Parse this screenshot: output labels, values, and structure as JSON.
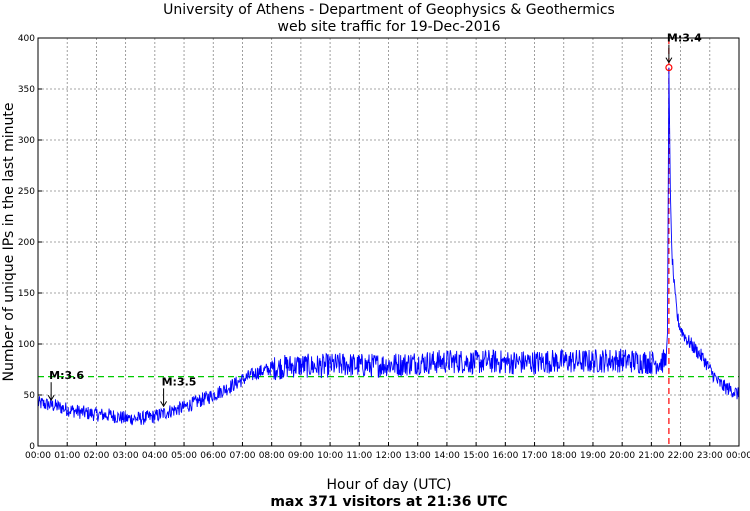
{
  "chart_data": {
    "type": "line",
    "title": "University of Athens - Department of Geophysics & Geothermics",
    "subtitle": "web site traffic for 19-Dec-2016",
    "xlabel": "Hour of day (UTC)",
    "ylabel": "Number of unique IPs in the last minute",
    "footer": "max 371 visitors at 21:36 UTC",
    "xlim": [
      0,
      24
    ],
    "ylim": [
      0,
      400
    ],
    "grid": true,
    "x_ticks": [
      "00:00",
      "01:00",
      "02:00",
      "03:00",
      "04:00",
      "05:00",
      "06:00",
      "07:00",
      "08:00",
      "09:00",
      "10:00",
      "11:00",
      "12:00",
      "13:00",
      "14:00",
      "15:00",
      "16:00",
      "17:00",
      "18:00",
      "19:00",
      "20:00",
      "21:00",
      "22:00",
      "23:00",
      "00:00"
    ],
    "y_ticks": [
      0,
      50,
      100,
      150,
      200,
      250,
      300,
      350,
      400
    ],
    "series": [
      {
        "name": "unique IPs per minute",
        "color": "#0000ff",
        "x": [
          0,
          0.5,
          1,
          1.5,
          2,
          2.5,
          3,
          3.5,
          4,
          4.5,
          5,
          5.5,
          6,
          6.5,
          7,
          7.5,
          8,
          8.5,
          9,
          9.5,
          10,
          10.5,
          11,
          11.5,
          12,
          12.5,
          13,
          13.5,
          14,
          14.5,
          15,
          15.5,
          16,
          16.5,
          17,
          17.5,
          18,
          18.5,
          19,
          19.5,
          20,
          20.5,
          21,
          21.3,
          21.5,
          21.55,
          21.6,
          21.65,
          21.7,
          21.8,
          21.9,
          22,
          22.2,
          22.5,
          22.8,
          23,
          23.3,
          23.5,
          23.8,
          24
        ],
        "y": [
          42,
          40,
          36,
          33,
          31,
          30,
          27,
          27,
          29,
          34,
          38,
          44,
          50,
          57,
          65,
          72,
          76,
          78,
          79,
          78,
          79,
          80,
          79,
          79,
          80,
          80,
          82,
          82,
          83,
          83,
          82,
          83,
          82,
          82,
          82,
          83,
          83,
          83,
          83,
          84,
          84,
          83,
          82,
          82,
          84,
          110,
          371,
          250,
          190,
          150,
          125,
          115,
          105,
          95,
          85,
          75,
          62,
          58,
          54,
          50
        ]
      }
    ],
    "reference_lines": [
      {
        "orientation": "horizontal",
        "value": 68,
        "color": "#00cc00",
        "style": "dashed"
      },
      {
        "orientation": "vertical",
        "value": 21.6,
        "color": "#ff0000",
        "style": "dashed"
      }
    ],
    "max_marker": {
      "x": 21.6,
      "y": 371,
      "color": "#ff0000"
    },
    "annotations": [
      {
        "label": "M:3.6",
        "x": 0.45,
        "y": 40
      },
      {
        "label": "M:3.5",
        "x": 4.3,
        "y": 34
      },
      {
        "label": "M:3.4",
        "x": 21.6,
        "y": 371
      }
    ]
  }
}
